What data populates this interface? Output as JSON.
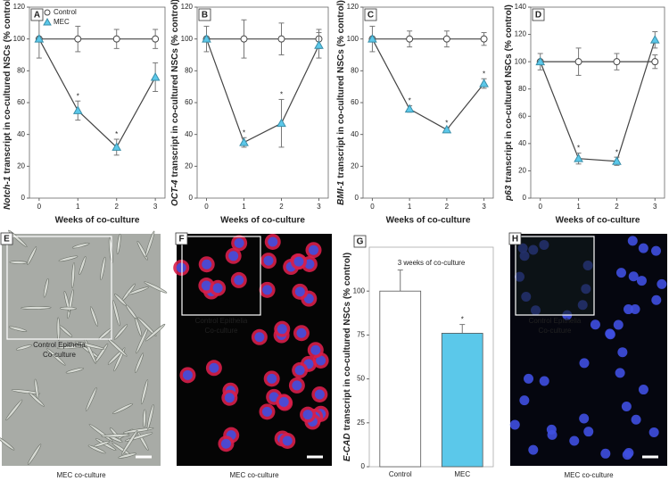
{
  "chart_data": [
    {
      "type": "line",
      "label": "A",
      "x": [
        0,
        1,
        2,
        3
      ],
      "xlim": [
        -0.25,
        3.25
      ],
      "xticks": [
        0,
        1,
        2,
        3
      ],
      "xlabel": "Weeks of co-culture",
      "ylabel_italic": "Notch-1",
      "ylabel": "transcript in co-cultured NSCs (% control)",
      "ylim": [
        0,
        120
      ],
      "yticks": [
        0,
        20,
        40,
        60,
        80,
        100,
        120
      ],
      "legend": "upper left",
      "series": [
        {
          "name": "Control",
          "color": "#ffffff",
          "marker": "circle",
          "values": [
            100,
            100,
            100,
            100
          ],
          "errors": [
            12,
            8,
            6,
            6
          ],
          "significance": [
            null,
            null,
            null,
            null
          ]
        },
        {
          "name": "MEC",
          "color": "#5bc8ea",
          "marker": "triangle",
          "values": [
            100,
            55,
            32,
            76
          ],
          "errors": [
            0,
            6,
            5,
            9
          ],
          "significance": [
            null,
            "*",
            "*",
            null
          ]
        }
      ]
    },
    {
      "type": "line",
      "label": "B",
      "x": [
        0,
        1,
        2,
        3
      ],
      "xlim": [
        -0.25,
        3.25
      ],
      "xticks": [
        0,
        1,
        2,
        3
      ],
      "xlabel": "Weeks of co-culture",
      "ylabel_italic": "OCT-4",
      "ylabel": "transcript in co-cultured NSCs (% control)",
      "ylim": [
        0,
        120
      ],
      "yticks": [
        0,
        20,
        40,
        60,
        80,
        100,
        120
      ],
      "series": [
        {
          "color": "#ffffff",
          "marker": "circle",
          "values": [
            100,
            100,
            100,
            100
          ],
          "errors": [
            8,
            12,
            10,
            6
          ],
          "significance": [
            null,
            null,
            null,
            null
          ]
        },
        {
          "color": "#5bc8ea",
          "marker": "triangle",
          "values": [
            100,
            35,
            47,
            96
          ],
          "errors": [
            0,
            3,
            15,
            8
          ],
          "significance": [
            null,
            "*",
            "*",
            null
          ]
        }
      ]
    },
    {
      "type": "line",
      "label": "C",
      "x": [
        0,
        1,
        2,
        3
      ],
      "xlim": [
        -0.25,
        3.25
      ],
      "xticks": [
        0,
        1,
        2,
        3
      ],
      "xlabel": "Weeks of co-culture",
      "ylabel_italic": "BMI-1",
      "ylabel": "transcript in co-cultured NSCs (% control)",
      "ylim": [
        0,
        120
      ],
      "yticks": [
        0,
        20,
        40,
        60,
        80,
        100,
        120
      ],
      "series": [
        {
          "color": "#ffffff",
          "marker": "circle",
          "values": [
            100,
            100,
            100,
            100
          ],
          "errors": [
            8,
            5,
            5,
            4
          ],
          "significance": [
            null,
            null,
            null,
            null
          ]
        },
        {
          "color": "#5bc8ea",
          "marker": "triangle",
          "values": [
            100,
            56,
            43,
            72
          ],
          "errors": [
            0,
            2,
            1,
            3
          ],
          "significance": [
            null,
            "*",
            "*",
            "*"
          ]
        }
      ]
    },
    {
      "type": "line",
      "label": "D",
      "x": [
        0,
        1,
        2,
        3
      ],
      "xlim": [
        -0.25,
        3.25
      ],
      "xticks": [
        0,
        1,
        2,
        3
      ],
      "xlabel": "Weeks of co-culture",
      "ylabel_italic": "p63",
      "ylabel": "transcript in co-cultured NSCs (% control)",
      "ylim": [
        0,
        140
      ],
      "yticks": [
        0,
        20,
        40,
        60,
        80,
        100,
        120,
        140
      ],
      "series": [
        {
          "color": "#ffffff",
          "marker": "circle",
          "values": [
            100,
            100,
            100,
            100
          ],
          "errors": [
            6,
            10,
            6,
            5
          ],
          "significance": [
            null,
            null,
            null,
            null
          ]
        },
        {
          "color": "#5bc8ea",
          "marker": "triangle",
          "values": [
            100,
            29,
            27,
            116
          ],
          "errors": [
            0,
            4,
            3,
            6
          ],
          "significance": [
            null,
            "*",
            "*",
            null
          ]
        }
      ]
    },
    {
      "type": "bar",
      "label": "G",
      "subtitle": "3 weeks of co-culture",
      "categories": [
        "Control",
        "MEC"
      ],
      "values": [
        100,
        76
      ],
      "errors": [
        12,
        5
      ],
      "colors": [
        "#ffffff",
        "#5bc8ea"
      ],
      "significance": [
        null,
        "*"
      ],
      "ylabel_italic": "E-CAD",
      "ylabel": "transcript in co-cultured NSCs (% control)",
      "ylim": [
        0,
        125
      ],
      "yticks": [
        0,
        25,
        50,
        75,
        100
      ]
    }
  ],
  "images": [
    {
      "label": "E",
      "inset_label": [
        "Control Epithelia",
        "Co-culture"
      ],
      "caption": "MEC co-culture"
    },
    {
      "label": "F",
      "inset_label": [
        "Control Epithelia",
        "Co-culture"
      ],
      "caption": "MEC co-culture"
    },
    {
      "label": "H",
      "inset_label": [
        "Control Epithelia",
        "Co-culture"
      ],
      "caption": "MEC co-culture"
    }
  ]
}
